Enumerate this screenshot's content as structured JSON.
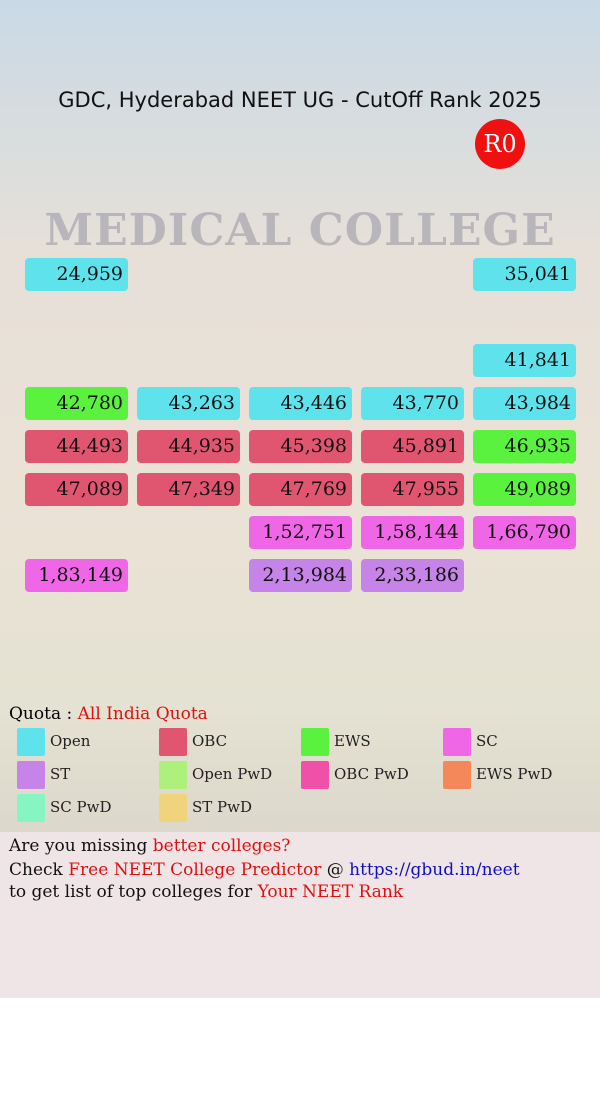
{
  "header": {
    "title": "GDC, Hyderabad NEET UG - CutOff Rank 2025",
    "round": "R0"
  },
  "background": {
    "sign": "MEDICAL COLLEGE"
  },
  "cells": [
    "24,959",
    "35,041",
    "41,841",
    "42,780",
    "43,263",
    "43,446",
    "43,770",
    "43,984",
    "44,493",
    "44,935",
    "45,398",
    "45,891",
    "46,935",
    "47,089",
    "47,349",
    "47,769",
    "47,955",
    "49,089",
    "1,52,751",
    "1,58,144",
    "1,66,790",
    "1,83,149",
    "2,13,984",
    "2,33,186"
  ],
  "quota": {
    "label": "Quota :",
    "value": "All India Quota"
  },
  "legend": [
    {
      "name": "Open",
      "color": "#5ee3ec"
    },
    {
      "name": "OBC",
      "color": "#e05670"
    },
    {
      "name": "EWS",
      "color": "#5af23e"
    },
    {
      "name": "SC",
      "color": "#ef67e6"
    },
    {
      "name": "ST",
      "color": "#c683e8"
    },
    {
      "name": "Open PwD",
      "color": "#aef07c"
    },
    {
      "name": "OBC PwD",
      "color": "#f050a8"
    },
    {
      "name": "EWS PwD",
      "color": "#f5885a"
    },
    {
      "name": "SC PwD",
      "color": "#86f5c2"
    },
    {
      "name": "ST PwD",
      "color": "#efd47c"
    }
  ],
  "footer": {
    "line1": [
      "Are you missing",
      "better colleges?"
    ],
    "line2": [
      "Check",
      "Free NEET College Predictor",
      "@",
      "https://gbud.in/neet"
    ],
    "line3": [
      "to get list of top colleges for",
      "Your NEET Rank"
    ]
  }
}
